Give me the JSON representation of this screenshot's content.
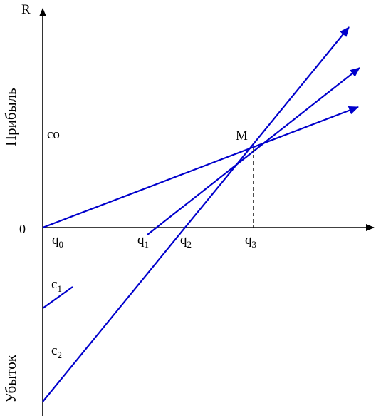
{
  "axes": {
    "y_label": "R",
    "origin_label": "0",
    "profit_label": "Прибыль",
    "loss_label": "Убыток"
  },
  "labels": {
    "co": "co",
    "point_m": "M",
    "c1_base": "c",
    "c1_sub": "1",
    "c2_base": "c",
    "c2_sub": "2",
    "q0_base": "q",
    "q0_sub": "0",
    "q1_base": "q",
    "q1_sub": "1",
    "q2_base": "q",
    "q2_sub": "2",
    "q3_base": "q",
    "q3_sub": "3"
  },
  "colors": {
    "lines": "#0000cc",
    "axes": "#000000"
  }
}
